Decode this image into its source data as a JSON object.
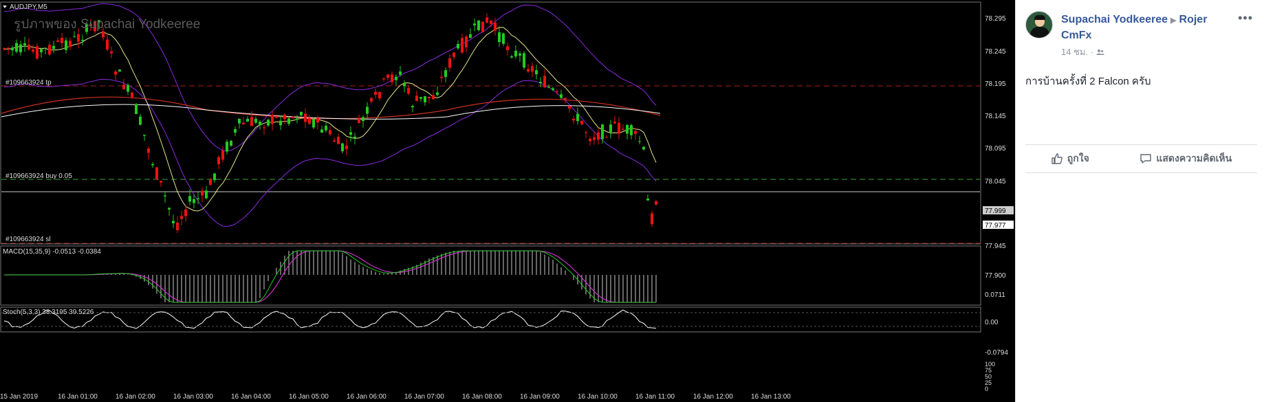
{
  "chart": {
    "symbol_label": "AUDJPY,M5",
    "watermark": "รูปภาพของ Supachai Yodkeeree",
    "orders": {
      "tp_label": "#109663924 tp",
      "buy_label": "#109663924 buy 0.05",
      "sl_label": "#109663924 sl"
    },
    "price_axis": [
      "78.295",
      "78.245",
      "78.195",
      "78.145",
      "78.095",
      "78.045",
      "77.945",
      "77.900"
    ],
    "price_badges": {
      "order": "77.999",
      "current": "77.977"
    },
    "macd": {
      "label": "MACD(15,35,9) -0.0513 -0.0384",
      "axis": [
        "0.0711",
        "0.00",
        "-0.0794"
      ]
    },
    "stoch": {
      "label": "Stoch(5,3,3) 38.3195 39.5226",
      "axis": [
        "100",
        "75",
        "50",
        "25",
        "0"
      ]
    },
    "time_axis": [
      "15 Jan 2019",
      "16 Jan 01:00",
      "16 Jan 02:00",
      "16 Jan 03:00",
      "16 Jan 04:00",
      "16 Jan 05:00",
      "16 Jan 06:00",
      "16 Jan 07:00",
      "16 Jan 08:00",
      "16 Jan 09:00",
      "16 Jan 10:00",
      "16 Jan 11:00",
      "16 Jan 12:00",
      "16 Jan 13:00"
    ],
    "colors": {
      "bull": "#22cc22",
      "bear": "#ee1111",
      "bollinger": "#8a2be2",
      "ma_fast": "#e6e68a",
      "ma_slow": "#d03020",
      "ma_long": "#ffffff",
      "order_line": "#33aa33",
      "sl_tp_line": "#cc2222"
    }
  },
  "post": {
    "author": "Supachai Yodkeeree",
    "target": "Rojer CmFx",
    "time": "14 ชม.",
    "audience_icon": "friends-icon",
    "text": "การบ้านครั้งที่ 2 Falcon ครับ",
    "like_label": "ถูกใจ",
    "comment_label": "แสดงความคิดเห็น",
    "more_icon": "more-options-icon"
  }
}
